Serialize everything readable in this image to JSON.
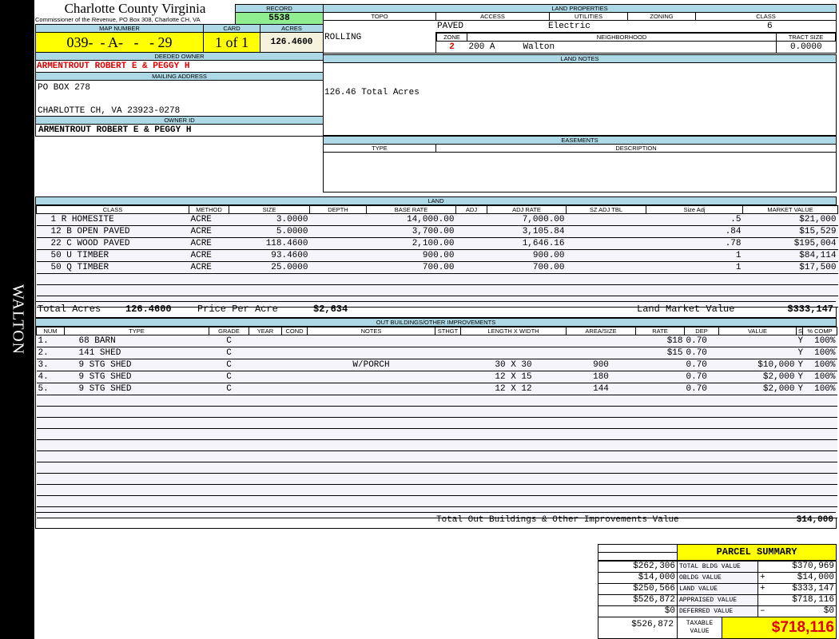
{
  "side_label": "WALTON",
  "header": {
    "title": "Charlotte County Virginia",
    "subtitle": "Commissioner of the Revenue, PO Box 308, Charlotte CH, VA",
    "record_label": "RECORD",
    "record": "5538",
    "map_label": "MAP NUMBER",
    "map_number": "039-  - A-   -   - 29",
    "card_label": "CARD",
    "card": "1 of 1",
    "acres_label": "ACRES",
    "acres": "126.4600"
  },
  "owner": {
    "deeded_label": "DEEDED OWNER",
    "deeded": "ARMENTROUT ROBERT E & PEGGY H",
    "mailing_label": "MAILING ADDRESS",
    "address1": "PO BOX 278",
    "address2": "CHARLOTTE CH, VA 23923-0278",
    "owner_id_label": "OWNER ID",
    "owner_id": "ARMENTROUT ROBERT E & PEGGY H"
  },
  "land_props": {
    "title": "LAND PROPERTIES",
    "topo_label": "TOPO",
    "access_label": "ACCESS",
    "utilities_label": "UTILITIES",
    "zoning_label": "ZONING",
    "class_label": "CLASS",
    "topo": "ROLLING",
    "access": "PAVED",
    "utilities": "Electric",
    "zoning": "",
    "class": "6",
    "zone_label": "ZONE",
    "neighborhood_label": "NEIGHBORHOOD",
    "tract_label": "TRACT SIZE",
    "zone": "2",
    "neighborhood_code": "200 A",
    "neighborhood": "Walton",
    "tract": "0.0000"
  },
  "land_notes": {
    "title": "LAND NOTES",
    "text": "126.46 Total Acres"
  },
  "easements": {
    "title": "EASEMENTS",
    "type_label": "TYPE",
    "desc_label": "DESCRIPTION"
  },
  "land": {
    "title": "LAND",
    "columns": [
      "CLASS",
      "METHOD",
      "SIZE",
      "DEPTH",
      "BASE RATE",
      "ADJ",
      "ADJ RATE",
      "SZ ADJ TBL",
      "Size Adj",
      "MARKET VALUE"
    ],
    "rows": [
      [
        "1 R HOMESITE",
        "ACRE",
        "3.0000",
        "",
        "14,000.00",
        "",
        "7,000.00",
        "",
        ".5",
        "$21,000"
      ],
      [
        "12 B OPEN PAVED",
        "ACRE",
        "5.0000",
        "",
        "3,700.00",
        "",
        "3,105.84",
        "",
        ".84",
        "$15,529"
      ],
      [
        "22 C WOOD PAVED",
        "ACRE",
        "118.4600",
        "",
        "2,100.00",
        "",
        "1,646.16",
        "",
        ".78",
        "$195,004"
      ],
      [
        "50 U TIMBER",
        "ACRE",
        "93.4600",
        "",
        "900.00",
        "",
        "900.00",
        "",
        "1",
        "$84,114"
      ],
      [
        "50 Q TIMBER",
        "ACRE",
        "25.0000",
        "",
        "700.00",
        "",
        "700.00",
        "",
        "1",
        "$17,500"
      ]
    ],
    "total_acres_label": "Total Acres",
    "total_acres": "126.4600",
    "ppa_label": "Price Per Acre",
    "ppa": "$2,634",
    "lmv_label": "Land Market Value",
    "lmv": "$333,147"
  },
  "outbuildings": {
    "title": "OUT BUILDINGS/OTHER IMPROVEMENTS",
    "columns": [
      "NUM",
      "TYPE",
      "GRADE",
      "YEAR",
      "COND",
      "NOTES",
      "STHGT",
      "LENGTH X WIDTH",
      "AREA/SIZE",
      "RATE",
      "DEP",
      "VALUE",
      "S",
      "% COMP"
    ],
    "rows": [
      [
        "1.",
        "68 BARN",
        "C",
        "",
        "",
        "",
        "",
        "",
        "",
        "$18",
        "0.70",
        "",
        "Y",
        "100%"
      ],
      [
        "2.",
        "141 SHED",
        "C",
        "",
        "",
        "",
        "",
        "",
        "",
        "$15",
        "0.70",
        "",
        "Y",
        "100%"
      ],
      [
        "3.",
        "9 STG SHED",
        "C",
        "",
        "",
        "W/PORCH",
        "",
        "30 X 30",
        "900",
        "",
        "0.70",
        "$10,000",
        "Y",
        "100%"
      ],
      [
        "4.",
        "9 STG SHED",
        "C",
        "",
        "",
        "",
        "",
        "12 X 15",
        "180",
        "",
        "0.70",
        "$2,000",
        "Y",
        "100%"
      ],
      [
        "5.",
        "9 STG SHED",
        "C",
        "",
        "",
        "",
        "",
        "12 X 12",
        "144",
        "",
        "0.70",
        "$2,000",
        "Y",
        "100%"
      ]
    ],
    "total_label": "Total Out Buildings & Other Improvements Value",
    "total": "$14,000"
  },
  "summary": {
    "title": "PARCEL SUMMARY",
    "rows": [
      {
        "left": "$262,306",
        "label": "TOTAL BLDG VALUE",
        "sign": "",
        "value": "$370,969"
      },
      {
        "left": "$14,000",
        "label": "OBLDG VALUE",
        "sign": "+",
        "value": "$14,000"
      },
      {
        "left": "$250,566",
        "label": "LAND VALUE",
        "sign": "+",
        "value": "$333,147"
      },
      {
        "left": "$526,872",
        "label": "APPRAISED VALUE",
        "sign": "",
        "value": "$718,116"
      },
      {
        "left": "$0",
        "label": "DEFERRED VALUE",
        "sign": "–",
        "value": "$0"
      }
    ],
    "taxable_left": "$526,872",
    "taxable_label": "TAXABLE VALUE",
    "taxable": "$718,116"
  },
  "colors": {
    "header_blue": "#add8e6",
    "record_green": "#90ee90",
    "map_yellow": "#ffff00",
    "accent_red": "#e00000"
  }
}
